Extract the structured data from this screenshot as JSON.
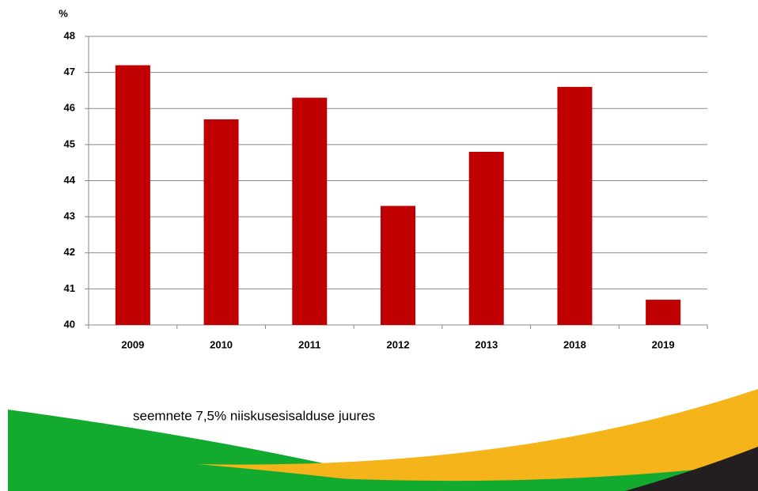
{
  "chart_data": {
    "type": "bar",
    "y_label": "%",
    "annotation": "seemnete 7,5% niiskusesisalduse juures",
    "categories": [
      "2009",
      "2010",
      "2011",
      "2012",
      "2013",
      "2018",
      "2019"
    ],
    "values": [
      47.2,
      45.7,
      46.3,
      43.3,
      44.8,
      46.6,
      40.7
    ],
    "color": "#c00000",
    "ylim": [
      40,
      48
    ],
    "yticks": [
      40,
      41,
      42,
      43,
      44,
      45,
      46,
      47,
      48
    ],
    "grid": true
  }
}
